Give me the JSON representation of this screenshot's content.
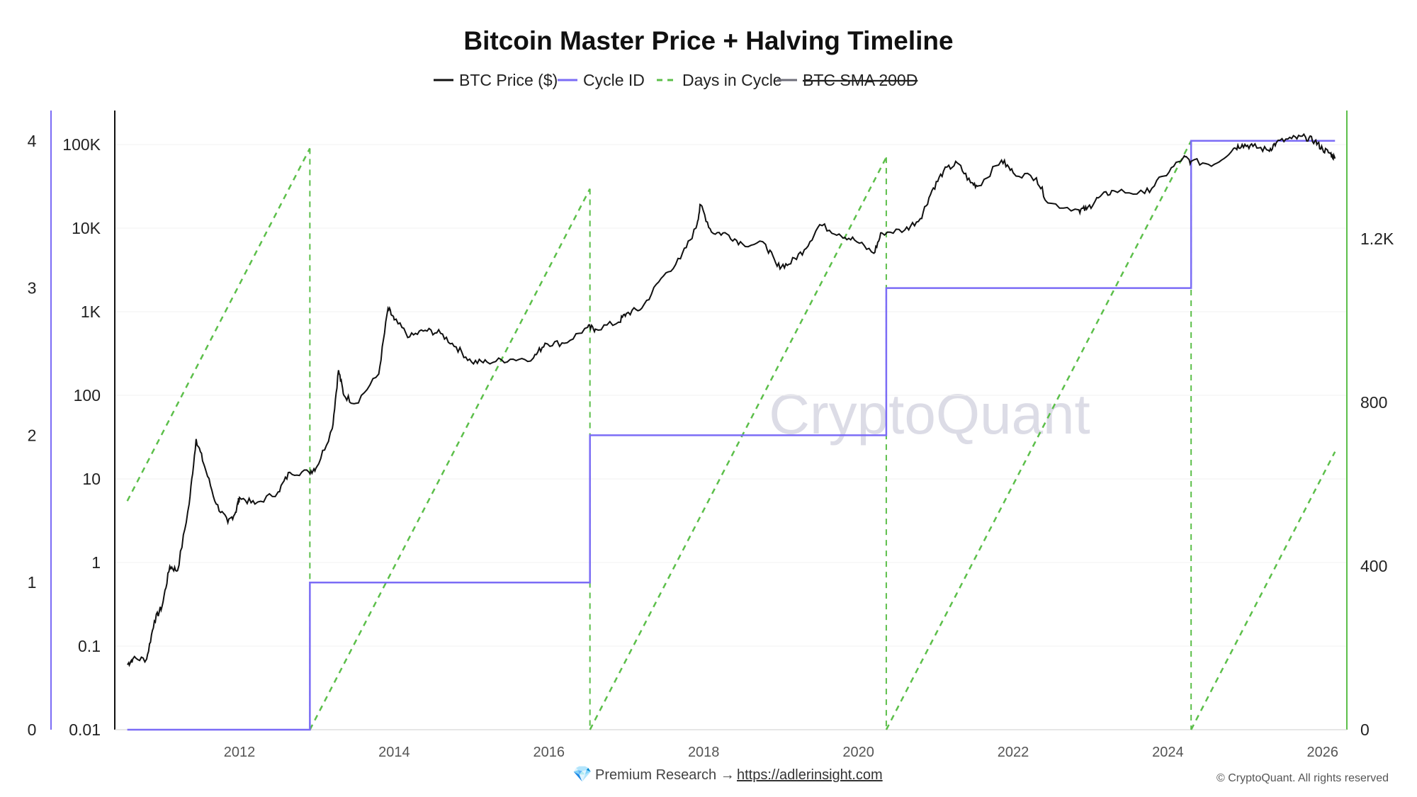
{
  "chart_data": {
    "type": "line",
    "title": "Bitcoin Master Price + Halving Timeline",
    "legend": [
      {
        "name": "BTC Price ($)",
        "color": "#111111",
        "style": "solid",
        "hidden": false
      },
      {
        "name": "Cycle ID",
        "color": "#7b6cf6",
        "style": "solid",
        "hidden": false
      },
      {
        "name": "Days in Cycle",
        "color": "#5cbf4a",
        "style": "dashed",
        "hidden": false
      },
      {
        "name": "BTC SMA 200D",
        "color": "#6e6e7a",
        "style": "solid",
        "hidden": true
      }
    ],
    "legend_placement": "top-center",
    "x_ticks": [
      "2012",
      "2014",
      "2016",
      "2018",
      "2020",
      "2022",
      "2024",
      "2026"
    ],
    "xlim": [
      2010.4,
      2026.35
    ],
    "price_axis": {
      "scale": "log",
      "ylim": [
        0.01,
        100000
      ],
      "ticks": [
        "0.01",
        "0.1",
        "1",
        "10",
        "100",
        "1K",
        "10K",
        "100K"
      ]
    },
    "cycle_axis": {
      "ylim": [
        0,
        4
      ],
      "ticks": [
        "0",
        "1",
        "2",
        "3",
        "4"
      ]
    },
    "days_axis": {
      "ylim": [
        0,
        1440
      ],
      "ticks": [
        "0",
        "400",
        "800",
        "1.2K"
      ]
    },
    "halvings": [
      2012.91,
      2016.53,
      2020.36,
      2024.3
    ],
    "days_segments": [
      {
        "start": 2010.55,
        "end": 2012.91,
        "start_days": 559
      },
      {
        "start": 2012.91,
        "end": 2016.53,
        "start_days": 0
      },
      {
        "start": 2016.53,
        "end": 2020.36,
        "start_days": 0
      },
      {
        "start": 2020.36,
        "end": 2024.3,
        "start_days": 0
      },
      {
        "start": 2024.3,
        "end": 2026.16,
        "start_days": 0
      }
    ],
    "cycle_steps": [
      {
        "start": 2010.55,
        "end": 2012.91,
        "value": 0
      },
      {
        "start": 2012.91,
        "end": 2016.53,
        "value": 1
      },
      {
        "start": 2016.53,
        "end": 2020.36,
        "value": 2
      },
      {
        "start": 2020.36,
        "end": 2024.3,
        "value": 3
      },
      {
        "start": 2024.3,
        "end": 2026.16,
        "value": 4
      }
    ],
    "price": [
      [
        2010.55,
        0.06
      ],
      [
        2010.62,
        0.07
      ],
      [
        2010.8,
        0.07
      ],
      [
        2010.9,
        0.2
      ],
      [
        2011.0,
        0.3
      ],
      [
        2011.1,
        0.9
      ],
      [
        2011.2,
        0.8
      ],
      [
        2011.35,
        5
      ],
      [
        2011.44,
        30
      ],
      [
        2011.55,
        14
      ],
      [
        2011.7,
        5
      ],
      [
        2011.85,
        3
      ],
      [
        2011.95,
        4
      ],
      [
        2012.0,
        6
      ],
      [
        2012.2,
        5
      ],
      [
        2012.5,
        7
      ],
      [
        2012.65,
        12
      ],
      [
        2012.9,
        12
      ],
      [
        2013.0,
        14
      ],
      [
        2013.2,
        40
      ],
      [
        2013.28,
        200
      ],
      [
        2013.35,
        100
      ],
      [
        2013.5,
        80
      ],
      [
        2013.8,
        180
      ],
      [
        2013.92,
        1100
      ],
      [
        2014.0,
        800
      ],
      [
        2014.2,
        500
      ],
      [
        2014.4,
        600
      ],
      [
        2014.6,
        550
      ],
      [
        2014.8,
        380
      ],
      [
        2015.0,
        250
      ],
      [
        2015.2,
        250
      ],
      [
        2015.5,
        270
      ],
      [
        2015.8,
        280
      ],
      [
        2015.95,
        420
      ],
      [
        2016.2,
        420
      ],
      [
        2016.5,
        650
      ],
      [
        2016.6,
        620
      ],
      [
        2016.9,
        750
      ],
      [
        2017.0,
        950
      ],
      [
        2017.2,
        1100
      ],
      [
        2017.45,
        2500
      ],
      [
        2017.7,
        4300
      ],
      [
        2017.9,
        10000
      ],
      [
        2017.96,
        19000
      ],
      [
        2018.1,
        9000
      ],
      [
        2018.3,
        8500
      ],
      [
        2018.5,
        6500
      ],
      [
        2018.8,
        6400
      ],
      [
        2018.95,
        3500
      ],
      [
        2019.1,
        3700
      ],
      [
        2019.3,
        5500
      ],
      [
        2019.5,
        11000
      ],
      [
        2019.75,
        8500
      ],
      [
        2019.95,
        7200
      ],
      [
        2020.2,
        5000
      ],
      [
        2020.3,
        8800
      ],
      [
        2020.6,
        9500
      ],
      [
        2020.8,
        13000
      ],
      [
        2020.95,
        28000
      ],
      [
        2021.1,
        48000
      ],
      [
        2021.28,
        60000
      ],
      [
        2021.45,
        35000
      ],
      [
        2021.55,
        32000
      ],
      [
        2021.85,
        65000
      ],
      [
        2022.0,
        46000
      ],
      [
        2022.3,
        40000
      ],
      [
        2022.45,
        20000
      ],
      [
        2022.85,
        16500
      ],
      [
        2022.95,
        16800
      ],
      [
        2023.1,
        23000
      ],
      [
        2023.3,
        28000
      ],
      [
        2023.7,
        26000
      ],
      [
        2023.95,
        42000
      ],
      [
        2024.2,
        70000
      ],
      [
        2024.3,
        63000
      ],
      [
        2024.6,
        58000
      ],
      [
        2024.85,
        90000
      ],
      [
        2024.96,
        100000
      ],
      [
        2025.1,
        95000
      ],
      [
        2025.3,
        85000
      ],
      [
        2025.4,
        105000
      ],
      [
        2025.6,
        118000
      ],
      [
        2025.78,
        122000
      ],
      [
        2025.9,
        110000
      ],
      [
        2026.0,
        88000
      ],
      [
        2026.1,
        78000
      ],
      [
        2026.16,
        68000
      ]
    ],
    "watermark": "CryptoQuant"
  },
  "footer": {
    "gem_icon": "gem-icon",
    "premium_text": "Premium Research →",
    "link": "https://adlerinsight.com",
    "copyright": "© CryptoQuant. All rights reserved"
  }
}
